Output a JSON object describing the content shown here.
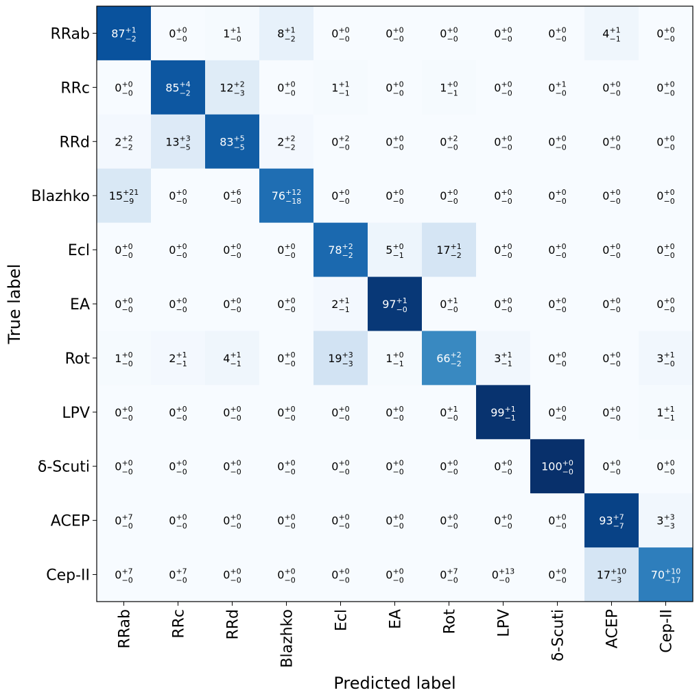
{
  "chart_data": {
    "type": "heatmap",
    "xlabel": "Predicted label",
    "ylabel": "True label",
    "x_categories": [
      "RRab",
      "RRc",
      "RRd",
      "Blazhko",
      "Ecl",
      "EA",
      "Rot",
      "LPV",
      "δ-Scuti",
      "ACEP",
      "Cep-II"
    ],
    "y_categories": [
      "RRab",
      "RRc",
      "RRd",
      "Blazhko",
      "Ecl",
      "EA",
      "Rot",
      "LPV",
      "δ-Scuti",
      "ACEP",
      "Cep-II"
    ],
    "colormap": "Blues",
    "value_range": [
      0,
      100
    ],
    "cells": [
      [
        [
          "87",
          "+1",
          "−2"
        ],
        [
          "0",
          "+0",
          "−0"
        ],
        [
          "1",
          "+1",
          "−0"
        ],
        [
          "8",
          "+1",
          "−2"
        ],
        [
          "0",
          "+0",
          "−0"
        ],
        [
          "0",
          "+0",
          "−0"
        ],
        [
          "0",
          "+0",
          "−0"
        ],
        [
          "0",
          "+0",
          "−0"
        ],
        [
          "0",
          "+0",
          "−0"
        ],
        [
          "4",
          "+1",
          "−1"
        ],
        [
          "0",
          "+0",
          "−0"
        ]
      ],
      [
        [
          "0",
          "+0",
          "−0"
        ],
        [
          "85",
          "+4",
          "−2"
        ],
        [
          "12",
          "+2",
          "−3"
        ],
        [
          "0",
          "+0",
          "−0"
        ],
        [
          "1",
          "+1",
          "−1"
        ],
        [
          "0",
          "+0",
          "−0"
        ],
        [
          "1",
          "+0",
          "−1"
        ],
        [
          "0",
          "+0",
          "−0"
        ],
        [
          "0",
          "+1",
          "−0"
        ],
        [
          "0",
          "+0",
          "−0"
        ],
        [
          "0",
          "+0",
          "−0"
        ]
      ],
      [
        [
          "2",
          "+2",
          "−2"
        ],
        [
          "13",
          "+3",
          "−5"
        ],
        [
          "83",
          "+5",
          "−5"
        ],
        [
          "2",
          "+2",
          "−2"
        ],
        [
          "0",
          "+2",
          "−0"
        ],
        [
          "0",
          "+0",
          "−0"
        ],
        [
          "0",
          "+2",
          "−0"
        ],
        [
          "0",
          "+0",
          "−0"
        ],
        [
          "0",
          "+0",
          "−0"
        ],
        [
          "0",
          "+0",
          "−0"
        ],
        [
          "0",
          "+0",
          "−0"
        ]
      ],
      [
        [
          "15",
          "+21",
          "−9"
        ],
        [
          "0",
          "+0",
          "−0"
        ],
        [
          "0",
          "+6",
          "−0"
        ],
        [
          "76",
          "+12",
          "−18"
        ],
        [
          "0",
          "+0",
          "−0"
        ],
        [
          "0",
          "+0",
          "−0"
        ],
        [
          "0",
          "+0",
          "−0"
        ],
        [
          "0",
          "+0",
          "−0"
        ],
        [
          "0",
          "+0",
          "−0"
        ],
        [
          "0",
          "+0",
          "−0"
        ],
        [
          "0",
          "+0",
          "−0"
        ]
      ],
      [
        [
          "0",
          "+0",
          "−0"
        ],
        [
          "0",
          "+0",
          "−0"
        ],
        [
          "0",
          "+0",
          "−0"
        ],
        [
          "0",
          "+0",
          "−0"
        ],
        [
          "78",
          "+2",
          "−2"
        ],
        [
          "5",
          "+0",
          "−1"
        ],
        [
          "17",
          "+1",
          "−2"
        ],
        [
          "0",
          "+0",
          "−0"
        ],
        [
          "0",
          "+0",
          "−0"
        ],
        [
          "0",
          "+0",
          "−0"
        ],
        [
          "0",
          "+0",
          "−0"
        ]
      ],
      [
        [
          "0",
          "+0",
          "−0"
        ],
        [
          "0",
          "+0",
          "−0"
        ],
        [
          "0",
          "+0",
          "−0"
        ],
        [
          "0",
          "+0",
          "−0"
        ],
        [
          "2",
          "+1",
          "−1"
        ],
        [
          "97",
          "+1",
          "−0"
        ],
        [
          "0",
          "+1",
          "−0"
        ],
        [
          "0",
          "+0",
          "−0"
        ],
        [
          "0",
          "+0",
          "−0"
        ],
        [
          "0",
          "+0",
          "−0"
        ],
        [
          "0",
          "+0",
          "−0"
        ]
      ],
      [
        [
          "1",
          "+0",
          "−0"
        ],
        [
          "2",
          "+1",
          "−1"
        ],
        [
          "4",
          "+1",
          "−1"
        ],
        [
          "0",
          "+0",
          "−0"
        ],
        [
          "19",
          "+3",
          "−3"
        ],
        [
          "1",
          "+0",
          "−1"
        ],
        [
          "66",
          "+2",
          "−2"
        ],
        [
          "3",
          "+1",
          "−1"
        ],
        [
          "0",
          "+0",
          "−0"
        ],
        [
          "0",
          "+0",
          "−0"
        ],
        [
          "3",
          "+1",
          "−0"
        ]
      ],
      [
        [
          "0",
          "+0",
          "−0"
        ],
        [
          "0",
          "+0",
          "−0"
        ],
        [
          "0",
          "+0",
          "−0"
        ],
        [
          "0",
          "+0",
          "−0"
        ],
        [
          "0",
          "+0",
          "−0"
        ],
        [
          "0",
          "+0",
          "−0"
        ],
        [
          "0",
          "+1",
          "−0"
        ],
        [
          "99",
          "+1",
          "−1"
        ],
        [
          "0",
          "+0",
          "−0"
        ],
        [
          "0",
          "+0",
          "−0"
        ],
        [
          "1",
          "+1",
          "−1"
        ]
      ],
      [
        [
          "0",
          "+0",
          "−0"
        ],
        [
          "0",
          "+0",
          "−0"
        ],
        [
          "0",
          "+0",
          "−0"
        ],
        [
          "0",
          "+0",
          "−0"
        ],
        [
          "0",
          "+0",
          "−0"
        ],
        [
          "0",
          "+0",
          "−0"
        ],
        [
          "0",
          "+0",
          "−0"
        ],
        [
          "0",
          "+0",
          "−0"
        ],
        [
          "100",
          "+0",
          "−0"
        ],
        [
          "0",
          "+0",
          "−0"
        ],
        [
          "0",
          "+0",
          "−0"
        ]
      ],
      [
        [
          "0",
          "+7",
          "−0"
        ],
        [
          "0",
          "+0",
          "−0"
        ],
        [
          "0",
          "+0",
          "−0"
        ],
        [
          "0",
          "+0",
          "−0"
        ],
        [
          "0",
          "+0",
          "−0"
        ],
        [
          "0",
          "+0",
          "−0"
        ],
        [
          "0",
          "+0",
          "−0"
        ],
        [
          "0",
          "+0",
          "−0"
        ],
        [
          "0",
          "+0",
          "−0"
        ],
        [
          "93",
          "+7",
          "−7"
        ],
        [
          "3",
          "+3",
          "−3"
        ]
      ],
      [
        [
          "0",
          "+7",
          "−0"
        ],
        [
          "0",
          "+7",
          "−0"
        ],
        [
          "0",
          "+0",
          "−0"
        ],
        [
          "0",
          "+0",
          "−0"
        ],
        [
          "0",
          "+0",
          "−0"
        ],
        [
          "0",
          "+0",
          "−0"
        ],
        [
          "0",
          "+7",
          "−0"
        ],
        [
          "0",
          "+13",
          "−0"
        ],
        [
          "0",
          "+0",
          "−0"
        ],
        [
          "17",
          "+10",
          "−3"
        ],
        [
          "70",
          "+10",
          "−17"
        ]
      ]
    ]
  }
}
